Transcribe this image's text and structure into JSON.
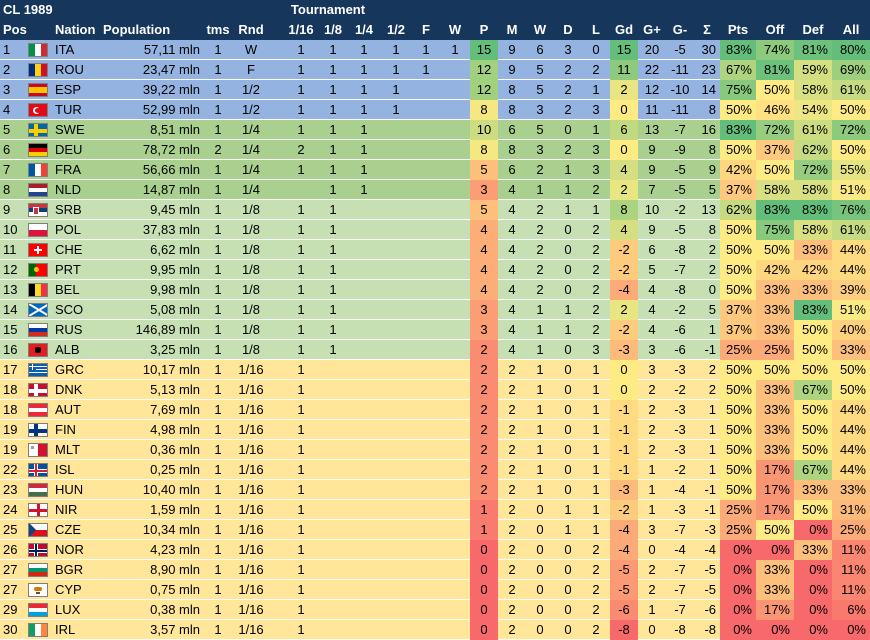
{
  "sheet": {
    "title": "CL 1989",
    "group_label": "Tournament",
    "headers": [
      "Pos",
      "Nation",
      "Population",
      "tms",
      "Rnd",
      "1/16",
      "1/8",
      "1/4",
      "1/2",
      "F",
      "W",
      "P",
      "M",
      "W",
      "D",
      "L",
      "Gd",
      "G+",
      "G-",
      "Σ",
      "Pts",
      "Off",
      "Def",
      "All"
    ]
  },
  "colors": {
    "header_bg": "#16365c",
    "header_text": "#ffffff",
    "zone_blue": "#95b3e0",
    "zone_green": "#a9d08e",
    "zone_lightgreen": "#c6e0b4",
    "zone_yellow": "#ffe699",
    "scale_red": "#f8696b",
    "scale_yellow": "#ffeb84",
    "scale_green": "#63be7b"
  },
  "rows": [
    {
      "pos": "1",
      "code": "ITA",
      "flag": "ita-flag-icon",
      "pop": "57,11 mln",
      "tms": "1",
      "rnd": "W",
      "t116": "1",
      "t18": "1",
      "t14": "1",
      "t12": "1",
      "tf": "1",
      "tw": "1",
      "p": "15",
      "m": "9",
      "w": "6",
      "d": "3",
      "l": "0",
      "gd": "15",
      "gp": "20",
      "gm": "-5",
      "sum": "30",
      "pts": "83%",
      "off": "74%",
      "def": "81%",
      "all": "80%"
    },
    {
      "pos": "2",
      "code": "ROU",
      "flag": "rou-flag-icon",
      "pop": "23,47 mln",
      "tms": "1",
      "rnd": "F",
      "t116": "1",
      "t18": "1",
      "t14": "1",
      "t12": "1",
      "tf": "1",
      "tw": "",
      "p": "12",
      "m": "9",
      "w": "5",
      "d": "2",
      "l": "2",
      "gd": "11",
      "gp": "22",
      "gm": "-11",
      "sum": "23",
      "pts": "67%",
      "off": "81%",
      "def": "59%",
      "all": "69%"
    },
    {
      "pos": "3",
      "code": "ESP",
      "flag": "esp-flag-icon",
      "pop": "39,22 mln",
      "tms": "1",
      "rnd": "1/2",
      "t116": "1",
      "t18": "1",
      "t14": "1",
      "t12": "1",
      "tf": "",
      "tw": "",
      "p": "12",
      "m": "8",
      "w": "5",
      "d": "2",
      "l": "1",
      "gd": "2",
      "gp": "12",
      "gm": "-10",
      "sum": "14",
      "pts": "75%",
      "off": "50%",
      "def": "58%",
      "all": "61%"
    },
    {
      "pos": "4",
      "code": "TUR",
      "flag": "tur-flag-icon",
      "pop": "52,99 mln",
      "tms": "1",
      "rnd": "1/2",
      "t116": "1",
      "t18": "1",
      "t14": "1",
      "t12": "1",
      "tf": "",
      "tw": "",
      "p": "8",
      "m": "8",
      "w": "3",
      "d": "2",
      "l": "3",
      "gd": "0",
      "gp": "11",
      "gm": "-11",
      "sum": "8",
      "pts": "50%",
      "off": "46%",
      "def": "54%",
      "all": "50%"
    },
    {
      "pos": "5",
      "code": "SWE",
      "flag": "swe-flag-icon",
      "pop": "8,51 mln",
      "tms": "1",
      "rnd": "1/4",
      "t116": "1",
      "t18": "1",
      "t14": "1",
      "t12": "",
      "tf": "",
      "tw": "",
      "p": "10",
      "m": "6",
      "w": "5",
      "d": "0",
      "l": "1",
      "gd": "6",
      "gp": "13",
      "gm": "-7",
      "sum": "16",
      "pts": "83%",
      "off": "72%",
      "def": "61%",
      "all": "72%"
    },
    {
      "pos": "6",
      "code": "DEU",
      "flag": "deu-flag-icon",
      "pop": "78,72 mln",
      "tms": "2",
      "rnd": "1/4",
      "t116": "2",
      "t18": "1",
      "t14": "1",
      "t12": "",
      "tf": "",
      "tw": "",
      "p": "8",
      "m": "8",
      "w": "3",
      "d": "2",
      "l": "3",
      "gd": "0",
      "gp": "9",
      "gm": "-9",
      "sum": "8",
      "pts": "50%",
      "off": "37%",
      "def": "62%",
      "all": "50%"
    },
    {
      "pos": "7",
      "code": "FRA",
      "flag": "fra-flag-icon",
      "pop": "56,66 mln",
      "tms": "1",
      "rnd": "1/4",
      "t116": "1",
      "t18": "1",
      "t14": "1",
      "t12": "",
      "tf": "",
      "tw": "",
      "p": "5",
      "m": "6",
      "w": "2",
      "d": "1",
      "l": "3",
      "gd": "4",
      "gp": "9",
      "gm": "-5",
      "sum": "9",
      "pts": "42%",
      "off": "50%",
      "def": "72%",
      "all": "55%"
    },
    {
      "pos": "8",
      "code": "NLD",
      "flag": "nld-flag-icon",
      "pop": "14,87 mln",
      "tms": "1",
      "rnd": "1/4",
      "t116": "",
      "t18": "1",
      "t14": "1",
      "t12": "",
      "tf": "",
      "tw": "",
      "p": "3",
      "m": "4",
      "w": "1",
      "d": "1",
      "l": "2",
      "gd": "2",
      "gp": "7",
      "gm": "-5",
      "sum": "5",
      "pts": "37%",
      "off": "58%",
      "def": "58%",
      "all": "51%"
    },
    {
      "pos": "9",
      "code": "SRB",
      "flag": "srb-flag-icon",
      "pop": "9,45 mln",
      "tms": "1",
      "rnd": "1/8",
      "t116": "1",
      "t18": "1",
      "t14": "",
      "t12": "",
      "tf": "",
      "tw": "",
      "p": "5",
      "m": "4",
      "w": "2",
      "d": "1",
      "l": "1",
      "gd": "8",
      "gp": "10",
      "gm": "-2",
      "sum": "13",
      "pts": "62%",
      "off": "83%",
      "def": "83%",
      "all": "76%"
    },
    {
      "pos": "10",
      "code": "POL",
      "flag": "pol-flag-icon",
      "pop": "37,83 mln",
      "tms": "1",
      "rnd": "1/8",
      "t116": "1",
      "t18": "1",
      "t14": "",
      "t12": "",
      "tf": "",
      "tw": "",
      "p": "4",
      "m": "4",
      "w": "2",
      "d": "0",
      "l": "2",
      "gd": "4",
      "gp": "9",
      "gm": "-5",
      "sum": "8",
      "pts": "50%",
      "off": "75%",
      "def": "58%",
      "all": "61%"
    },
    {
      "pos": "11",
      "code": "CHE",
      "flag": "che-flag-icon",
      "pop": "6,62 mln",
      "tms": "1",
      "rnd": "1/8",
      "t116": "1",
      "t18": "1",
      "t14": "",
      "t12": "",
      "tf": "",
      "tw": "",
      "p": "4",
      "m": "4",
      "w": "2",
      "d": "0",
      "l": "2",
      "gd": "-2",
      "gp": "6",
      "gm": "-8",
      "sum": "2",
      "pts": "50%",
      "off": "50%",
      "def": "33%",
      "all": "44%"
    },
    {
      "pos": "12",
      "code": "PRT",
      "flag": "prt-flag-icon",
      "pop": "9,95 mln",
      "tms": "1",
      "rnd": "1/8",
      "t116": "1",
      "t18": "1",
      "t14": "",
      "t12": "",
      "tf": "",
      "tw": "",
      "p": "4",
      "m": "4",
      "w": "2",
      "d": "0",
      "l": "2",
      "gd": "-2",
      "gp": "5",
      "gm": "-7",
      "sum": "2",
      "pts": "50%",
      "off": "42%",
      "def": "42%",
      "all": "44%"
    },
    {
      "pos": "13",
      "code": "BEL",
      "flag": "bel-flag-icon",
      "pop": "9,98 mln",
      "tms": "1",
      "rnd": "1/8",
      "t116": "1",
      "t18": "1",
      "t14": "",
      "t12": "",
      "tf": "",
      "tw": "",
      "p": "4",
      "m": "4",
      "w": "2",
      "d": "0",
      "l": "2",
      "gd": "-4",
      "gp": "4",
      "gm": "-8",
      "sum": "0",
      "pts": "50%",
      "off": "33%",
      "def": "33%",
      "all": "39%"
    },
    {
      "pos": "14",
      "code": "SCO",
      "flag": "sco-flag-icon",
      "pop": "5,08 mln",
      "tms": "1",
      "rnd": "1/8",
      "t116": "1",
      "t18": "1",
      "t14": "",
      "t12": "",
      "tf": "",
      "tw": "",
      "p": "3",
      "m": "4",
      "w": "1",
      "d": "1",
      "l": "2",
      "gd": "2",
      "gp": "4",
      "gm": "-2",
      "sum": "5",
      "pts": "37%",
      "off": "33%",
      "def": "83%",
      "all": "51%"
    },
    {
      "pos": "15",
      "code": "RUS",
      "flag": "rus-flag-icon",
      "pop": "146,89 mln",
      "tms": "1",
      "rnd": "1/8",
      "t116": "1",
      "t18": "1",
      "t14": "",
      "t12": "",
      "tf": "",
      "tw": "",
      "p": "3",
      "m": "4",
      "w": "1",
      "d": "1",
      "l": "2",
      "gd": "-2",
      "gp": "4",
      "gm": "-6",
      "sum": "1",
      "pts": "37%",
      "off": "33%",
      "def": "50%",
      "all": "40%"
    },
    {
      "pos": "16",
      "code": "ALB",
      "flag": "alb-flag-icon",
      "pop": "3,25 mln",
      "tms": "1",
      "rnd": "1/8",
      "t116": "1",
      "t18": "1",
      "t14": "",
      "t12": "",
      "tf": "",
      "tw": "",
      "p": "2",
      "m": "4",
      "w": "1",
      "d": "0",
      "l": "3",
      "gd": "-3",
      "gp": "3",
      "gm": "-6",
      "sum": "-1",
      "pts": "25%",
      "off": "25%",
      "def": "50%",
      "all": "33%"
    },
    {
      "pos": "17",
      "code": "GRC",
      "flag": "grc-flag-icon",
      "pop": "10,17 mln",
      "tms": "1",
      "rnd": "1/16",
      "t116": "1",
      "t18": "",
      "t14": "",
      "t12": "",
      "tf": "",
      "tw": "",
      "p": "2",
      "m": "2",
      "w": "1",
      "d": "0",
      "l": "1",
      "gd": "0",
      "gp": "3",
      "gm": "-3",
      "sum": "2",
      "pts": "50%",
      "off": "50%",
      "def": "50%",
      "all": "50%"
    },
    {
      "pos": "18",
      "code": "DNK",
      "flag": "dnk-flag-icon",
      "pop": "5,13 mln",
      "tms": "1",
      "rnd": "1/16",
      "t116": "1",
      "t18": "",
      "t14": "",
      "t12": "",
      "tf": "",
      "tw": "",
      "p": "2",
      "m": "2",
      "w": "1",
      "d": "0",
      "l": "1",
      "gd": "0",
      "gp": "2",
      "gm": "-2",
      "sum": "2",
      "pts": "50%",
      "off": "33%",
      "def": "67%",
      "all": "50%"
    },
    {
      "pos": "18",
      "code": "AUT",
      "flag": "aut-flag-icon",
      "pop": "7,69 mln",
      "tms": "1",
      "rnd": "1/16",
      "t116": "1",
      "t18": "",
      "t14": "",
      "t12": "",
      "tf": "",
      "tw": "",
      "p": "2",
      "m": "2",
      "w": "1",
      "d": "0",
      "l": "1",
      "gd": "-1",
      "gp": "2",
      "gm": "-3",
      "sum": "1",
      "pts": "50%",
      "off": "33%",
      "def": "50%",
      "all": "44%"
    },
    {
      "pos": "19",
      "code": "FIN",
      "flag": "fin-flag-icon",
      "pop": "4,98 mln",
      "tms": "1",
      "rnd": "1/16",
      "t116": "1",
      "t18": "",
      "t14": "",
      "t12": "",
      "tf": "",
      "tw": "",
      "p": "2",
      "m": "2",
      "w": "1",
      "d": "0",
      "l": "1",
      "gd": "-1",
      "gp": "2",
      "gm": "-3",
      "sum": "1",
      "pts": "50%",
      "off": "33%",
      "def": "50%",
      "all": "44%"
    },
    {
      "pos": "19",
      "code": "MLT",
      "flag": "mlt-flag-icon",
      "pop": "0,36 mln",
      "tms": "1",
      "rnd": "1/16",
      "t116": "1",
      "t18": "",
      "t14": "",
      "t12": "",
      "tf": "",
      "tw": "",
      "p": "2",
      "m": "2",
      "w": "1",
      "d": "0",
      "l": "1",
      "gd": "-1",
      "gp": "2",
      "gm": "-3",
      "sum": "1",
      "pts": "50%",
      "off": "33%",
      "def": "50%",
      "all": "44%"
    },
    {
      "pos": "22",
      "code": "ISL",
      "flag": "isl-flag-icon",
      "pop": "0,25 mln",
      "tms": "1",
      "rnd": "1/16",
      "t116": "1",
      "t18": "",
      "t14": "",
      "t12": "",
      "tf": "",
      "tw": "",
      "p": "2",
      "m": "2",
      "w": "1",
      "d": "0",
      "l": "1",
      "gd": "-1",
      "gp": "1",
      "gm": "-2",
      "sum": "1",
      "pts": "50%",
      "off": "17%",
      "def": "67%",
      "all": "44%"
    },
    {
      "pos": "23",
      "code": "HUN",
      "flag": "hun-flag-icon",
      "pop": "10,40 mln",
      "tms": "1",
      "rnd": "1/16",
      "t116": "1",
      "t18": "",
      "t14": "",
      "t12": "",
      "tf": "",
      "tw": "",
      "p": "2",
      "m": "2",
      "w": "1",
      "d": "0",
      "l": "1",
      "gd": "-3",
      "gp": "1",
      "gm": "-4",
      "sum": "-1",
      "pts": "50%",
      "off": "17%",
      "def": "33%",
      "all": "33%"
    },
    {
      "pos": "24",
      "code": "NIR",
      "flag": "nir-flag-icon",
      "pop": "1,59 mln",
      "tms": "1",
      "rnd": "1/16",
      "t116": "1",
      "t18": "",
      "t14": "",
      "t12": "",
      "tf": "",
      "tw": "",
      "p": "1",
      "m": "2",
      "w": "0",
      "d": "1",
      "l": "1",
      "gd": "-2",
      "gp": "1",
      "gm": "-3",
      "sum": "-1",
      "pts": "25%",
      "off": "17%",
      "def": "50%",
      "all": "31%"
    },
    {
      "pos": "25",
      "code": "CZE",
      "flag": "cze-flag-icon",
      "pop": "10,34 mln",
      "tms": "1",
      "rnd": "1/16",
      "t116": "1",
      "t18": "",
      "t14": "",
      "t12": "",
      "tf": "",
      "tw": "",
      "p": "1",
      "m": "2",
      "w": "0",
      "d": "1",
      "l": "1",
      "gd": "-4",
      "gp": "3",
      "gm": "-7",
      "sum": "-3",
      "pts": "25%",
      "off": "50%",
      "def": "0%",
      "all": "25%"
    },
    {
      "pos": "26",
      "code": "NOR",
      "flag": "nor-flag-icon",
      "pop": "4,23 mln",
      "tms": "1",
      "rnd": "1/16",
      "t116": "1",
      "t18": "",
      "t14": "",
      "t12": "",
      "tf": "",
      "tw": "",
      "p": "0",
      "m": "2",
      "w": "0",
      "d": "0",
      "l": "2",
      "gd": "-4",
      "gp": "0",
      "gm": "-4",
      "sum": "-4",
      "pts": "0%",
      "off": "0%",
      "def": "33%",
      "all": "11%"
    },
    {
      "pos": "27",
      "code": "BGR",
      "flag": "bgr-flag-icon",
      "pop": "8,90 mln",
      "tms": "1",
      "rnd": "1/16",
      "t116": "1",
      "t18": "",
      "t14": "",
      "t12": "",
      "tf": "",
      "tw": "",
      "p": "0",
      "m": "2",
      "w": "0",
      "d": "0",
      "l": "2",
      "gd": "-5",
      "gp": "2",
      "gm": "-7",
      "sum": "-5",
      "pts": "0%",
      "off": "33%",
      "def": "0%",
      "all": "11%"
    },
    {
      "pos": "27",
      "code": "CYP",
      "flag": "cyp-flag-icon",
      "pop": "0,75 mln",
      "tms": "1",
      "rnd": "1/16",
      "t116": "1",
      "t18": "",
      "t14": "",
      "t12": "",
      "tf": "",
      "tw": "",
      "p": "0",
      "m": "2",
      "w": "0",
      "d": "0",
      "l": "2",
      "gd": "-5",
      "gp": "2",
      "gm": "-7",
      "sum": "-5",
      "pts": "0%",
      "off": "33%",
      "def": "0%",
      "all": "11%"
    },
    {
      "pos": "29",
      "code": "LUX",
      "flag": "lux-flag-icon",
      "pop": "0,38 mln",
      "tms": "1",
      "rnd": "1/16",
      "t116": "1",
      "t18": "",
      "t14": "",
      "t12": "",
      "tf": "",
      "tw": "",
      "p": "0",
      "m": "2",
      "w": "0",
      "d": "0",
      "l": "2",
      "gd": "-6",
      "gp": "1",
      "gm": "-7",
      "sum": "-6",
      "pts": "0%",
      "off": "17%",
      "def": "0%",
      "all": "6%"
    },
    {
      "pos": "30",
      "code": "IRL",
      "flag": "irl-flag-icon",
      "pop": "3,57 mln",
      "tms": "1",
      "rnd": "1/16",
      "t116": "1",
      "t18": "",
      "t14": "",
      "t12": "",
      "tf": "",
      "tw": "",
      "p": "0",
      "m": "2",
      "w": "0",
      "d": "0",
      "l": "2",
      "gd": "-8",
      "gp": "0",
      "gm": "-8",
      "sum": "-8",
      "pts": "0%",
      "off": "0%",
      "def": "0%",
      "all": "0%"
    }
  ]
}
